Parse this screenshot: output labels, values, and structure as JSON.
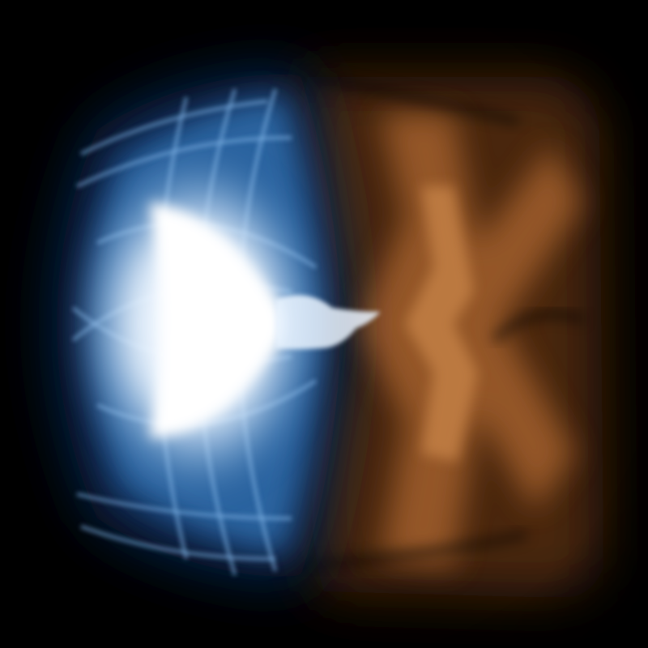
{
  "image": {
    "subject": "",
    "colors": {
      "background": "#000000",
      "blue_deep": "#0b2c57",
      "blue_mid": "#2f6aa8",
      "blue_light": "#7fb3e6",
      "blue_glow": "#eaf4ff",
      "orange_deep": "#4a2810",
      "orange_mid": "#9c5c2c",
      "orange_light": "#c98548"
    }
  }
}
